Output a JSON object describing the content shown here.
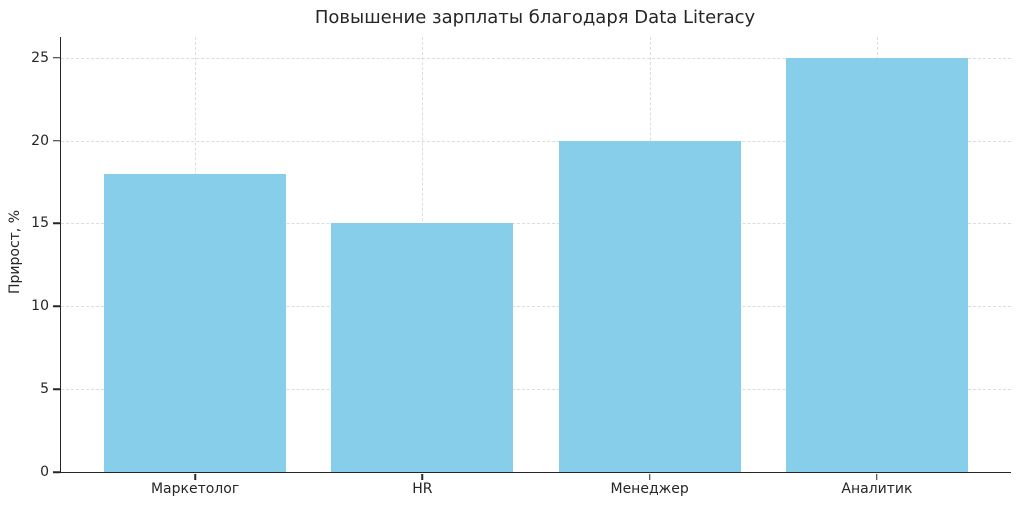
{
  "chart_data": {
    "type": "bar",
    "title": "Повышение зарплаты благодаря Data Literacy",
    "xlabel": "",
    "ylabel": "Прирост, %",
    "categories": [
      "Маркетолог",
      "HR",
      "Менеджер",
      "Аналитик"
    ],
    "values": [
      18,
      15,
      20,
      25
    ],
    "yticks": [
      0,
      5,
      10,
      15,
      20,
      25
    ],
    "ylim": [
      0,
      26.25
    ],
    "bar_color": "#87CEEB",
    "grid": true,
    "grid_color": "#dcdcdc",
    "spine_color": "#262626",
    "text_color": "#262626",
    "background_color": "#ffffff",
    "legend": null
  }
}
